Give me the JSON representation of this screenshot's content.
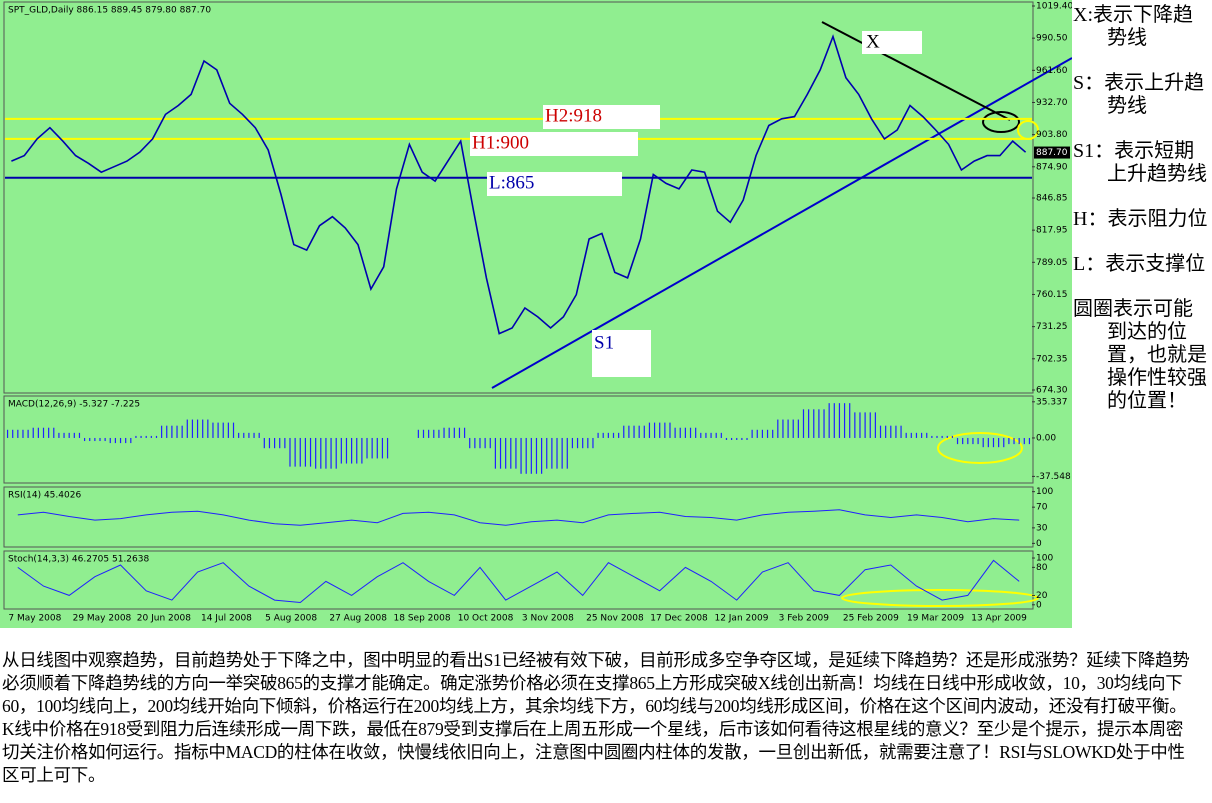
{
  "chart_data": [
    {
      "type": "line",
      "title": "SPT_GLD,Daily 886.15 889.45 879.80 887.70",
      "color": "#0000b0",
      "categories": [
        "7 May 2008",
        null,
        null,
        null,
        null,
        "29 May 2008",
        null,
        null,
        null,
        null,
        "20 Jun 2008",
        null,
        null,
        null,
        null,
        "14 Jul 2008",
        null,
        null,
        null,
        null,
        "5 Aug 2008",
        null,
        null,
        null,
        null,
        "27 Aug 2008",
        null,
        null,
        null,
        null,
        "18 Sep 2008",
        null,
        null,
        null,
        null,
        "10 Oct 2008",
        null,
        null,
        null,
        null,
        "3 Nov 2008",
        null,
        null,
        null,
        null,
        "25 Nov 2008",
        null,
        null,
        null,
        null,
        "17 Dec 2008",
        null,
        null,
        null,
        null,
        "12 Jan 2009",
        null,
        null,
        null,
        null,
        "3 Feb 2009",
        null,
        null,
        null,
        null,
        "25 Feb 2009",
        null,
        null,
        null,
        null,
        "19 Mar 2009",
        null,
        null,
        null,
        null,
        "13 Apr 2009",
        null,
        null,
        null,
        null
      ],
      "values": [
        880,
        885,
        900,
        910,
        898,
        885,
        878,
        870,
        875,
        880,
        888,
        900,
        922,
        930,
        940,
        970,
        962,
        932,
        922,
        910,
        890,
        850,
        805,
        800,
        822,
        830,
        820,
        805,
        765,
        785,
        855,
        895,
        870,
        862,
        880,
        898,
        835,
        775,
        725,
        730,
        748,
        740,
        730,
        740,
        760,
        810,
        815,
        780,
        775,
        810,
        868,
        860,
        855,
        872,
        870,
        835,
        825,
        845,
        885,
        912,
        918,
        920,
        940,
        962,
        992,
        955,
        940,
        918,
        900,
        908,
        930,
        920,
        908,
        895,
        872,
        880,
        885,
        885,
        898,
        888
      ],
      "ylim": [
        671.6,
        1023
      ],
      "yticks": [
        {
          "value": 1019.4,
          "label": "1019.40"
        },
        {
          "value": 990.5,
          "label": "990.50"
        },
        {
          "value": 961.6,
          "label": "961.60"
        },
        {
          "value": 932.7,
          "label": "932.70"
        },
        {
          "value": 903.8,
          "label": "903.80"
        },
        {
          "value": 874.9,
          "label": "874.90"
        },
        {
          "value": 846.85,
          "label": "846.85"
        },
        {
          "value": 817.95,
          "label": "817.95"
        },
        {
          "value": 789.05,
          "label": "789.05"
        },
        {
          "value": 760.15,
          "label": "760.15"
        },
        {
          "value": 731.25,
          "label": "731.25"
        },
        {
          "value": 702.35,
          "label": "702.35"
        },
        {
          "value": 674.3,
          "label": "674.30"
        }
      ],
      "last_price": {
        "value": 887.7,
        "label": "887.70"
      },
      "levels": [
        {
          "label": "H2:918",
          "value": 918,
          "color": "#ffff00"
        },
        {
          "label": "H1:900",
          "value": 900,
          "color": "#ffff00"
        },
        {
          "label": "L:865",
          "value": 865,
          "color": "#0000aa"
        }
      ],
      "annotations": [
        "X",
        "S1"
      ]
    },
    {
      "type": "histogram",
      "title": "MACD(12,26,9) -5.327 -7.225",
      "color": "#2020ff",
      "values": [
        8,
        10,
        5,
        -3,
        -5,
        2,
        12,
        18,
        15,
        5,
        -10,
        -28,
        -30,
        -25,
        -20,
        0,
        8,
        10,
        -10,
        -30,
        -35,
        -30,
        -10,
        5,
        12,
        15,
        10,
        5,
        -2,
        8,
        18,
        28,
        34,
        25,
        12,
        5,
        2,
        -6,
        -9,
        -6
      ],
      "ylim": [
        -44,
        41
      ],
      "yticks": [
        35.337,
        {
          "value": 0,
          "label": "0.00"
        },
        -37.548
      ]
    },
    {
      "type": "line",
      "title": "RSI(14) 45.4026",
      "color": "#2020ff",
      "values": [
        55,
        60,
        52,
        45,
        48,
        55,
        60,
        62,
        55,
        45,
        38,
        35,
        40,
        45,
        40,
        58,
        60,
        55,
        40,
        35,
        42,
        45,
        40,
        55,
        58,
        60,
        52,
        50,
        45,
        55,
        60,
        62,
        65,
        55,
        50,
        55,
        50,
        42,
        48,
        45
      ],
      "ylim": [
        -7,
        109
      ],
      "yticks": [
        100,
        70,
        30,
        0
      ]
    },
    {
      "type": "line",
      "title": "Stoch(14,3,3) 46.2705 51.2638",
      "color": "#2020ff",
      "values": [
        80,
        40,
        20,
        60,
        85,
        30,
        10,
        70,
        90,
        40,
        10,
        5,
        50,
        20,
        60,
        90,
        50,
        20,
        80,
        10,
        40,
        70,
        20,
        90,
        60,
        30,
        80,
        50,
        10,
        70,
        90,
        30,
        20,
        75,
        85,
        40,
        10,
        20,
        95,
        50
      ],
      "ylim": [
        -9,
        115
      ],
      "yticks": [
        100,
        80,
        20,
        0
      ]
    }
  ],
  "notes": [
    "X:表示下降趋势线",
    "S：表示上升趋势线",
    "S1：表示短期上升趋势线",
    "H：表示阻力位",
    "L：表示支撑位",
    "圆圈表示可能到达的位置，也就是操作性较强的位置！"
  ],
  "commentary": "从日线图中观察趋势，目前趋势处于下降之中，图中明显的看出S1已经被有效下破，目前形成多空争夺区域，是延续下降趋势？还是形成涨势？延续下降趋势必须顺着下降趋势线的方向一举突破865的支撑才能确定。确定涨势价格必须在支撑865上方形成突破X线创出新高！均线在日线中形成收敛，10，30均线向下60，100均线向上，200均线开始向下倾斜，价格运行在200均线上方，其余均线下方，60均线与200均线形成区间，价格在这个区间内波动，还没有打破平衡。K线中价格在918受到阻力后连续形成一周下跌，最低在879受到支撑后在上周五形成一个星线，后市该如何看待这根星线的意义？至少是个提示，提示本周密切关注价格如何运行。指标中MACD的柱体在收敛，快慢线依旧向上，注意图中圆圈内柱体的发散，一旦创出新低，就需要注意了！RSI与SLOWKD处于中性区可上可下。"
}
